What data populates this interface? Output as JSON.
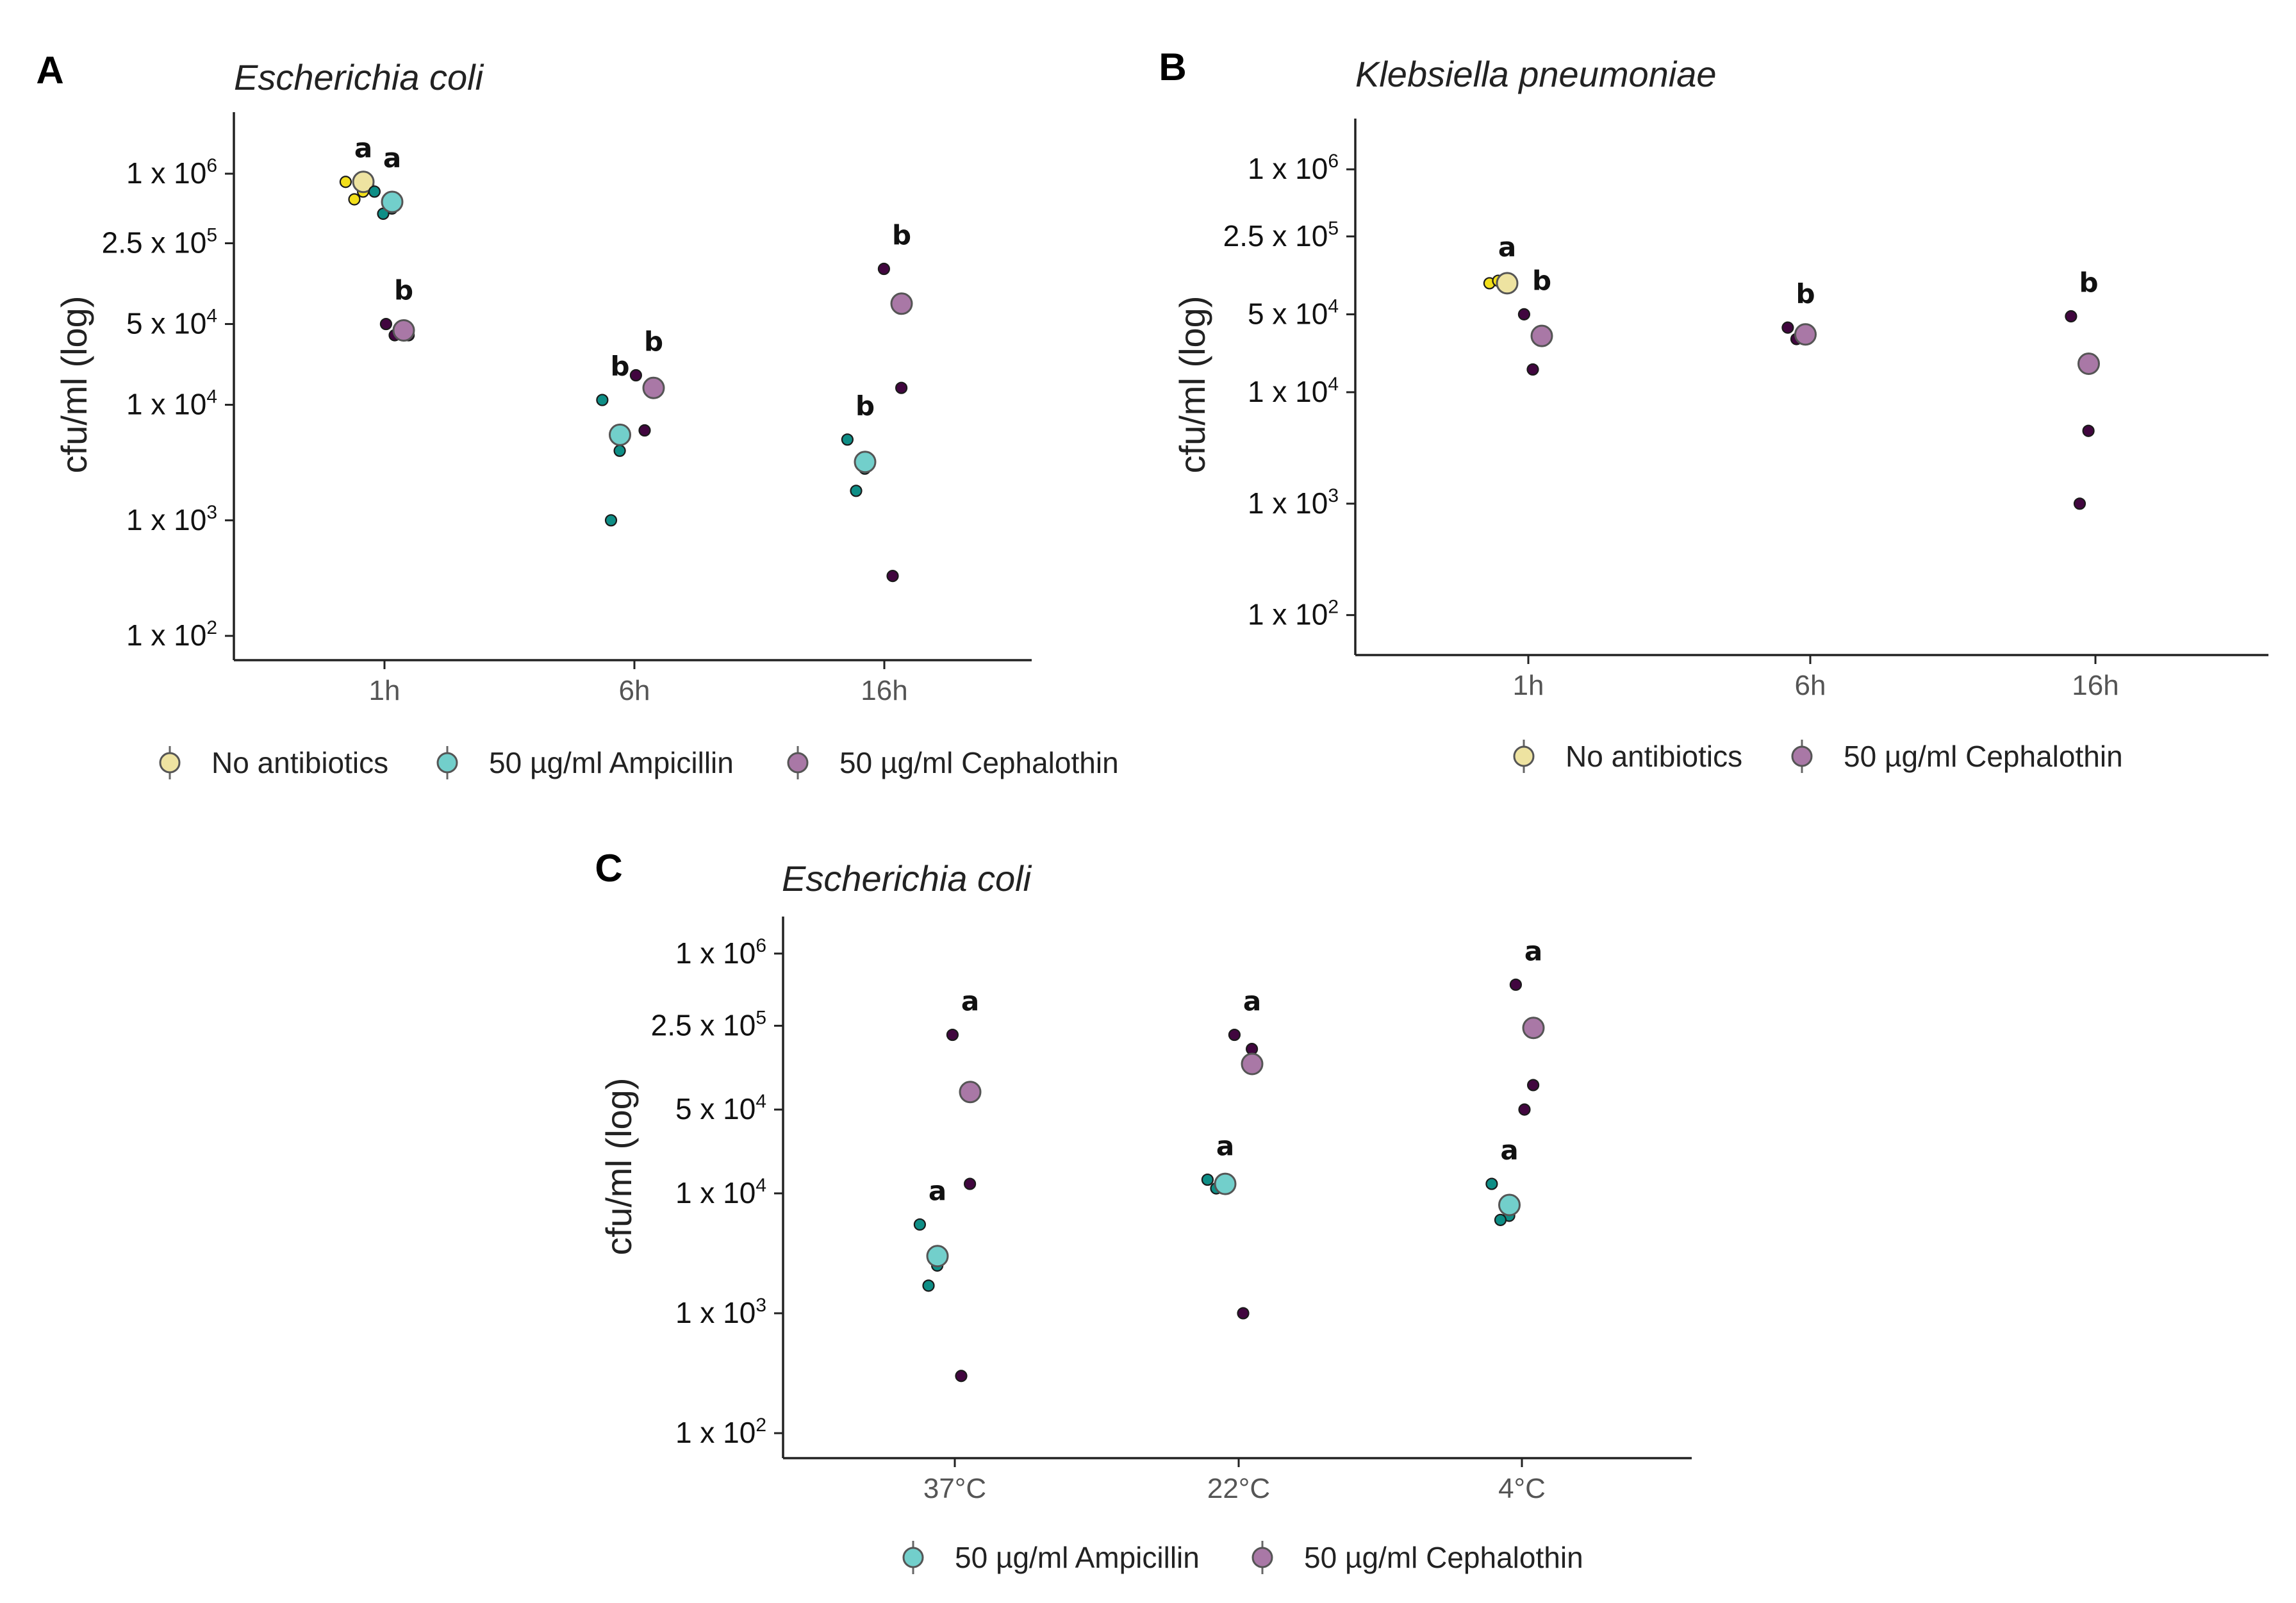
{
  "colors": {
    "yellow_pt": "#F2DF1B",
    "yellow_mean": "#EEE3A1",
    "teal_pt": "#0E8E86",
    "teal_mean": "#72CFCB",
    "purple_pt": "#41063F",
    "purple_mean": "#A978A6",
    "axis": "#222222"
  },
  "chart_data": [
    {
      "panel": "A",
      "type": "scatter",
      "title": "Escherichia coli",
      "xlabel": "",
      "ylabel": "cfu/ml (log)",
      "yscale": "log",
      "ylim": [
        70,
        3000000
      ],
      "yticks": [
        {
          "value": 100,
          "base": "1 x 10",
          "exp": "2"
        },
        {
          "value": 1000,
          "base": "1 x 10",
          "exp": "3"
        },
        {
          "value": 10000,
          "base": "1 x 10",
          "exp": "4"
        },
        {
          "value": 50000,
          "base": "5 x 10",
          "exp": "4"
        },
        {
          "value": 250000,
          "base": "2.5 x 10",
          "exp": "5"
        },
        {
          "value": 1000000,
          "base": "1 x 10",
          "exp": "6"
        }
      ],
      "categories": [
        "1h",
        "6h",
        "16h"
      ],
      "legend": [
        "No antibiotics",
        "50 µg/ml Ampicillin",
        "50 µg/ml Cephalothin"
      ],
      "series": [
        {
          "name": "No antibiotics",
          "color_key": "yellow",
          "groups": [
            {
              "category": "1h",
              "offset": -0.22,
              "mean": 850000,
              "points": [
                850000,
                700000,
                600000,
                800000
              ],
              "label": "a"
            }
          ]
        },
        {
          "name": "50 µg/ml Ampicillin",
          "color_key": "teal",
          "groups": [
            {
              "category": "1h",
              "offset": 0.08,
              "mean": 570000,
              "points": [
                700000,
                500000,
                450000
              ],
              "label": "a"
            },
            {
              "category": "6h",
              "offset": -0.15,
              "mean": 5500,
              "points": [
                11000,
                4000,
                1000
              ],
              "label": "b"
            },
            {
              "category": "16h",
              "offset": -0.2,
              "mean": 3200,
              "points": [
                5000,
                2800,
                1800
              ],
              "label": "b"
            }
          ]
        },
        {
          "name": "50 µg/ml Cephalothin",
          "color_key": "purple",
          "groups": [
            {
              "category": "1h",
              "offset": 0.2,
              "mean": 44000,
              "points": [
                50000,
                40000,
                40000,
                40000
              ],
              "label": "b"
            },
            {
              "category": "6h",
              "offset": 0.2,
              "mean": 14000,
              "points": [
                18000,
                15000,
                6000
              ],
              "label": "b"
            },
            {
              "category": "16h",
              "offset": 0.18,
              "mean": 75000,
              "points": [
                150000,
                14000,
                330
              ],
              "label": "b"
            }
          ]
        }
      ]
    },
    {
      "panel": "B",
      "type": "scatter",
      "title": "Klebsiella pneumoniae",
      "xlabel": "",
      "ylabel": "cfu/ml (log)",
      "yscale": "log",
      "ylim": [
        50,
        2500000
      ],
      "yticks": [
        {
          "value": 100,
          "base": "1 x 10",
          "exp": "2"
        },
        {
          "value": 1000,
          "base": "1 x 10",
          "exp": "3"
        },
        {
          "value": 10000,
          "base": "1 x 10",
          "exp": "4"
        },
        {
          "value": 50000,
          "base": "5 x 10",
          "exp": "4"
        },
        {
          "value": 250000,
          "base": "2.5 x 10",
          "exp": "5"
        },
        {
          "value": 1000000,
          "base": "1 x 10",
          "exp": "6"
        }
      ],
      "categories": [
        "1h",
        "6h",
        "16h"
      ],
      "legend": [
        "No antibiotics",
        "50 µg/ml Cephalothin"
      ],
      "series": [
        {
          "name": "No antibiotics",
          "color_key": "yellow",
          "groups": [
            {
              "category": "1h",
              "offset": -0.22,
              "mean": 95000,
              "points": [
                95000,
                93000,
                100000
              ],
              "label": "a"
            }
          ]
        },
        {
          "name": "50 µg/ml Cephalothin",
          "color_key": "purple",
          "groups": [
            {
              "category": "1h",
              "offset": 0.14,
              "mean": 32000,
              "points": [
                50000,
                32000,
                16000
              ],
              "label": "b"
            },
            {
              "category": "6h",
              "offset": -0.05,
              "mean": 33000,
              "points": [
                38000,
                32000,
                30000
              ],
              "label": "b"
            },
            {
              "category": "16h",
              "offset": -0.07,
              "mean": 18000,
              "points": [
                48000,
                4500,
                1000
              ],
              "label": "b"
            }
          ]
        }
      ]
    },
    {
      "panel": "C",
      "type": "scatter",
      "title": "Escherichia coli",
      "xlabel": "",
      "ylabel": "cfu/ml (log)",
      "yscale": "log",
      "ylim": [
        70,
        1800000
      ],
      "yticks": [
        {
          "value": 100,
          "base": "1 x 10",
          "exp": "2"
        },
        {
          "value": 1000,
          "base": "1 x 10",
          "exp": "3"
        },
        {
          "value": 10000,
          "base": "1 x 10",
          "exp": "4"
        },
        {
          "value": 50000,
          "base": "5 x 10",
          "exp": "4"
        },
        {
          "value": 250000,
          "base": "2.5 x 10",
          "exp": "5"
        },
        {
          "value": 1000000,
          "base": "1 x 10",
          "exp": "6"
        }
      ],
      "categories": [
        "37°C",
        "22°C",
        "4°C"
      ],
      "legend": [
        "50 µg/ml Ampicillin",
        "50 µg/ml Cephalothin"
      ],
      "series": [
        {
          "name": "50 µg/ml Ampicillin",
          "color_key": "teal",
          "groups": [
            {
              "category": "37°C",
              "offset": -0.18,
              "mean": 3000,
              "points": [
                5500,
                2500,
                1700
              ],
              "label": "a"
            },
            {
              "category": "22°C",
              "offset": -0.14,
              "mean": 12000,
              "points": [
                13000,
                11000,
                11000
              ],
              "label": "a"
            },
            {
              "category": "4°C",
              "offset": -0.13,
              "mean": 8000,
              "points": [
                12000,
                6500,
                6000
              ],
              "label": "a"
            }
          ]
        },
        {
          "name": "50 µg/ml Cephalothin",
          "color_key": "purple",
          "groups": [
            {
              "category": "37°C",
              "offset": 0.16,
              "mean": 70000,
              "points": [
                210000,
                12000,
                300
              ],
              "label": "a"
            },
            {
              "category": "22°C",
              "offset": 0.14,
              "mean": 120000,
              "points": [
                210000,
                160000,
                1000
              ],
              "label": "a"
            },
            {
              "category": "4°C",
              "offset": 0.12,
              "mean": 240000,
              "points": [
                550000,
                80000,
                50000
              ],
              "label": "a"
            }
          ]
        }
      ]
    }
  ]
}
